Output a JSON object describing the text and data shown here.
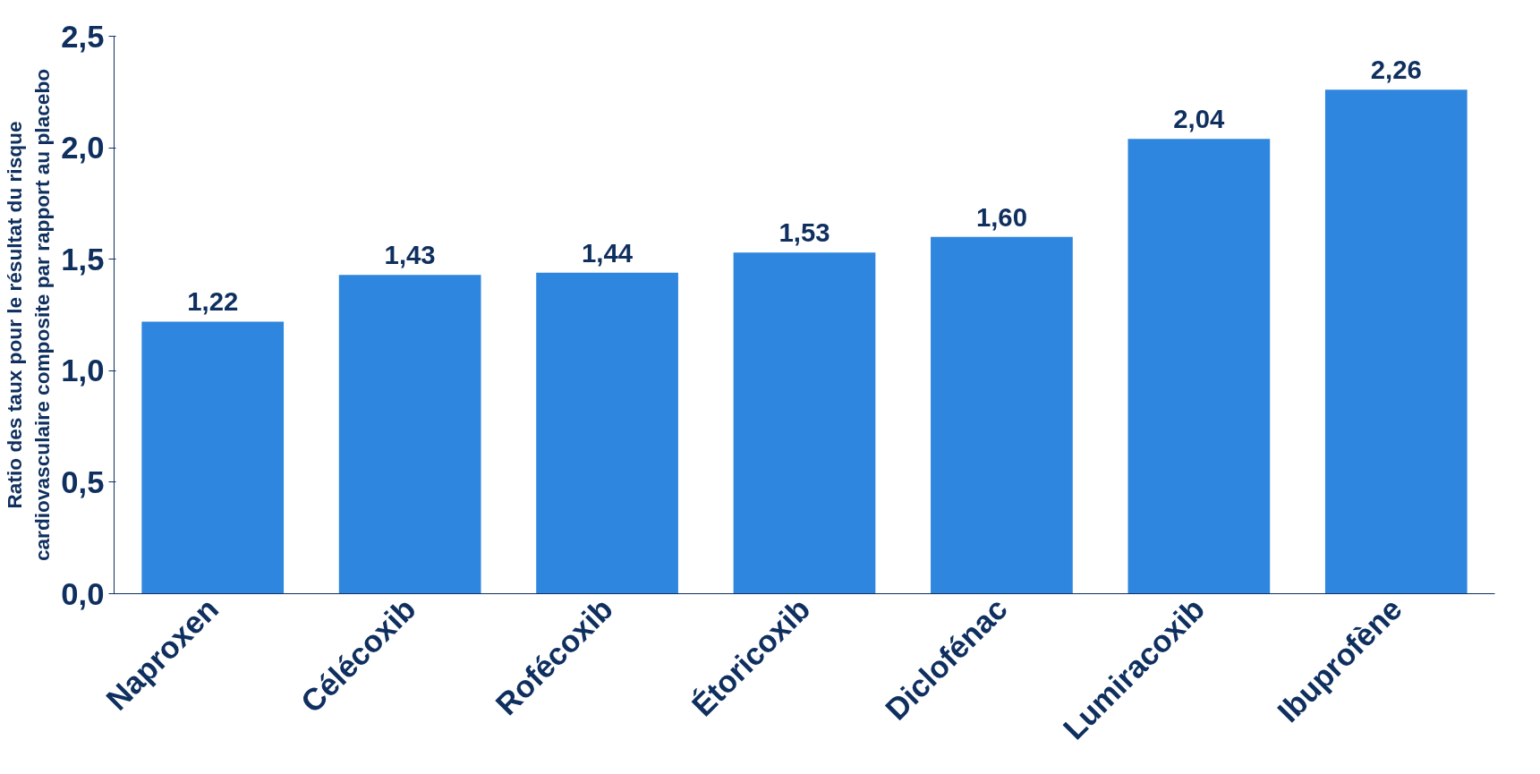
{
  "chart_data": {
    "type": "bar",
    "ylabel": "Ratio des taux pour le résultat du risque\ncardiovasculaire composite par rapport au placebo",
    "categories": [
      "Naproxen",
      "Célécoxib",
      "Rofécoxib",
      "Étoricoxib",
      "Diclofénac",
      "Lumiracoxib",
      "Ibuprofène"
    ],
    "values": [
      1.22,
      1.43,
      1.44,
      1.53,
      1.6,
      2.04,
      2.26
    ],
    "value_labels": [
      "1,22",
      "1,43",
      "1,44",
      "1,53",
      "1,60",
      "2,04",
      "2,26"
    ],
    "color": "#2e86de",
    "ylim": [
      0,
      2.5
    ],
    "yticks": [
      {
        "value": 0,
        "label": "0,0"
      },
      {
        "value": 0.5,
        "label": "0,5"
      },
      {
        "value": 1,
        "label": "1,0"
      },
      {
        "value": 1.5,
        "label": "1,5"
      },
      {
        "value": 2,
        "label": "2,0"
      },
      {
        "value": 2.5,
        "label": "2,5"
      }
    ],
    "grid": false
  }
}
